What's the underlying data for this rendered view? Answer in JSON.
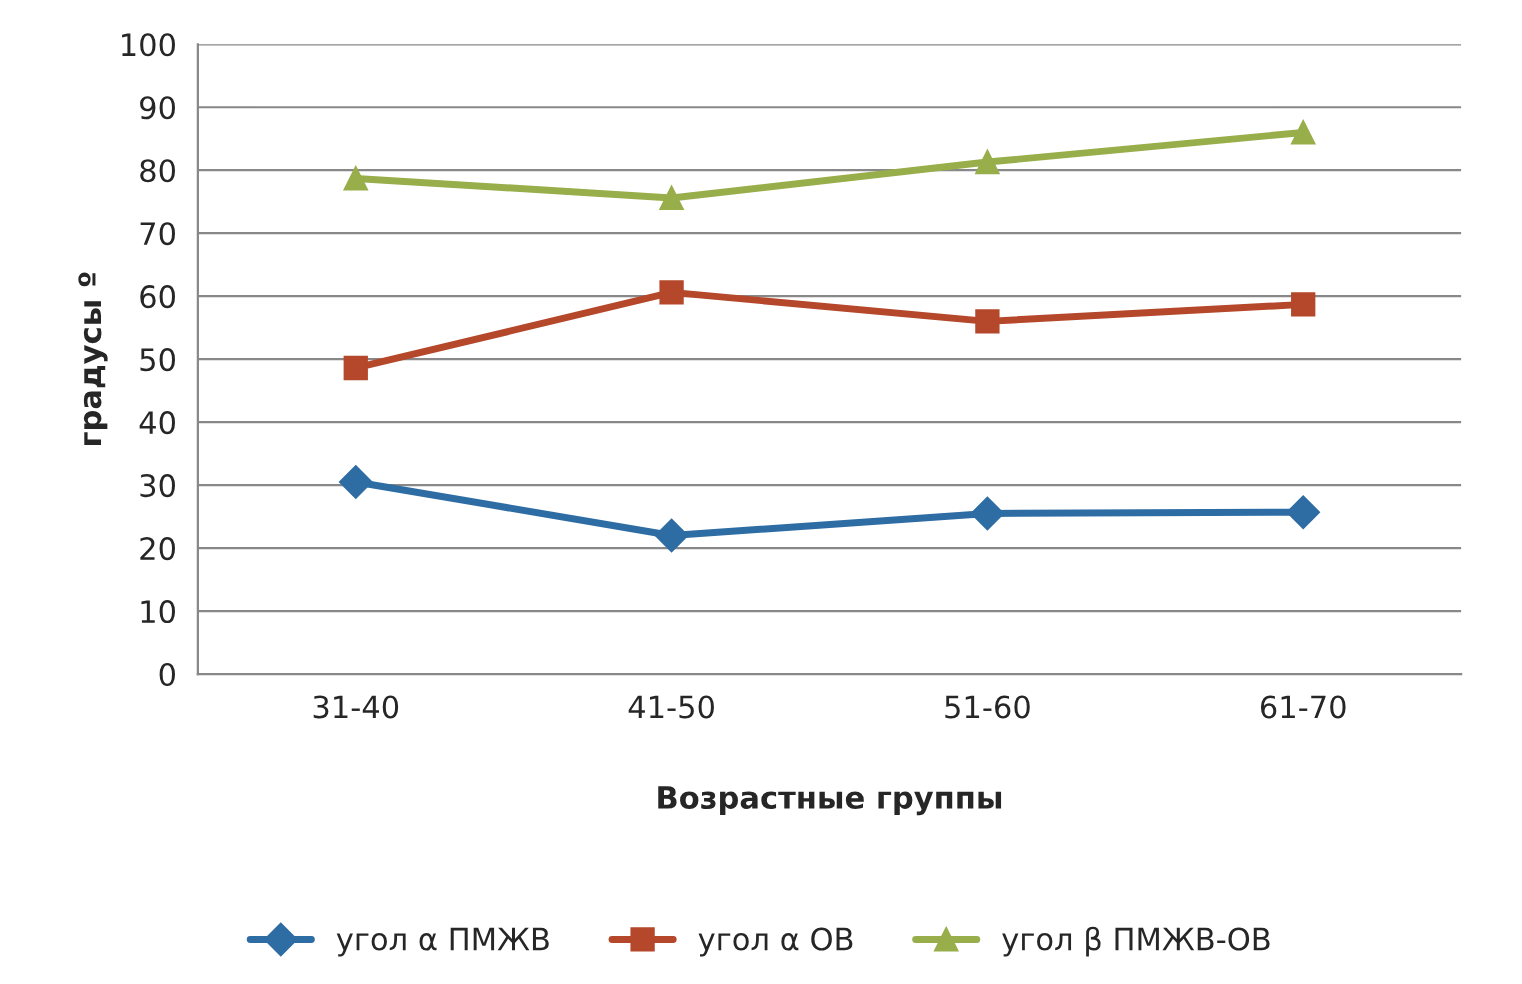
{
  "chart_data": {
    "type": "line",
    "xlabel": "Возрастные группы",
    "ylabel": "градусы º",
    "categories": [
      "31-40",
      "41-50",
      "51-60",
      "61-70"
    ],
    "series": [
      {
        "name": "угол α ПМЖВ",
        "color": "#2e6ca4",
        "marker": "diamond",
        "values": [
          30.5,
          22,
          25.5,
          25.7
        ]
      },
      {
        "name": "угол α ОВ",
        "color": "#b5472b",
        "marker": "square",
        "values": [
          48.6,
          60.6,
          56,
          58.7
        ]
      },
      {
        "name": "угол β ПМЖВ-ОВ",
        "color": "#98ae4a",
        "marker": "triangle",
        "values": [
          78.7,
          75.6,
          81.3,
          86
        ]
      }
    ],
    "ylim": [
      0,
      100
    ],
    "yticks": [
      0,
      10,
      20,
      30,
      40,
      50,
      60,
      70,
      80,
      90,
      100
    ],
    "grid": "y",
    "legend": "bottom",
    "line_style": "solid"
  }
}
